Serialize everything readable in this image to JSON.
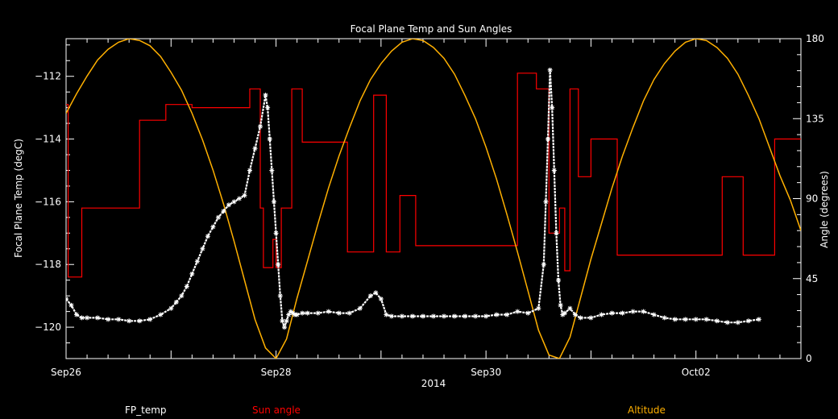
{
  "chart_data": {
    "type": "line",
    "title": "Focal Plane Temp and Sun Angles",
    "xlabel": "2014",
    "ylabel": "Focal Plane Temp (degC)",
    "y2label": "Angle (degrees)",
    "xlim": [
      0,
      7.0
    ],
    "ylim": [
      -121,
      -110.8
    ],
    "y2lim": [
      0,
      180
    ],
    "x_ticks": [
      {
        "x": 0,
        "label": "Sep26"
      },
      {
        "x": 2,
        "label": "Sep28"
      },
      {
        "x": 4,
        "label": "Sep30"
      },
      {
        "x": 6,
        "label": "Oct02"
      }
    ],
    "y_ticks": [
      {
        "y": -112,
        "label": "−112"
      },
      {
        "y": -114,
        "label": "−114"
      },
      {
        "y": -116,
        "label": "−116"
      },
      {
        "y": -118,
        "label": "−118"
      },
      {
        "y": -120,
        "label": "−120"
      }
    ],
    "y2_ticks": [
      {
        "y": 0,
        "label": "0"
      },
      {
        "y": 45,
        "label": "45"
      },
      {
        "y": 90,
        "label": "90"
      },
      {
        "y": 135,
        "label": "135"
      },
      {
        "y": 180,
        "label": "180"
      }
    ],
    "colors": {
      "fp_temp": "#ffffff",
      "sun_angle": "#ff0000",
      "altitude": "#ffb000"
    },
    "series": [
      {
        "name": "FP_temp",
        "axis": "left",
        "x": [
          0.0,
          0.05,
          0.1,
          0.15,
          0.2,
          0.3,
          0.4,
          0.5,
          0.6,
          0.7,
          0.8,
          0.9,
          1.0,
          1.05,
          1.1,
          1.15,
          1.2,
          1.25,
          1.3,
          1.35,
          1.4,
          1.45,
          1.5,
          1.55,
          1.6,
          1.65,
          1.7,
          1.75,
          1.8,
          1.85,
          1.9,
          1.92,
          1.94,
          1.96,
          1.98,
          2.0,
          2.02,
          2.04,
          2.06,
          2.08,
          2.1,
          2.12,
          2.14,
          2.16,
          2.18,
          2.2,
          2.25,
          2.3,
          2.4,
          2.5,
          2.6,
          2.7,
          2.8,
          2.9,
          2.95,
          3.0,
          3.05,
          3.1,
          3.2,
          3.3,
          3.4,
          3.5,
          3.6,
          3.7,
          3.8,
          3.9,
          4.0,
          4.1,
          4.2,
          4.3,
          4.4,
          4.5,
          4.55,
          4.57,
          4.59,
          4.61,
          4.63,
          4.65,
          4.67,
          4.69,
          4.71,
          4.73,
          4.75,
          4.8,
          4.85,
          4.9,
          5.0,
          5.1,
          5.2,
          5.3,
          5.4,
          5.5,
          5.6,
          5.7,
          5.8,
          5.9,
          6.0,
          6.1,
          6.2,
          6.3,
          6.4,
          6.5,
          6.6
        ],
        "values": [
          -119.1,
          -119.3,
          -119.6,
          -119.7,
          -119.7,
          -119.7,
          -119.75,
          -119.75,
          -119.8,
          -119.8,
          -119.75,
          -119.6,
          -119.4,
          -119.2,
          -119.0,
          -118.7,
          -118.3,
          -117.9,
          -117.5,
          -117.1,
          -116.8,
          -116.5,
          -116.3,
          -116.1,
          -116.0,
          -115.9,
          -115.8,
          -115.0,
          -114.3,
          -113.6,
          -112.6,
          -113.0,
          -114.0,
          -115.0,
          -116.0,
          -117.0,
          -118.0,
          -119.0,
          -119.8,
          -120.0,
          -119.8,
          -119.6,
          -119.5,
          -119.55,
          -119.6,
          -119.6,
          -119.55,
          -119.55,
          -119.55,
          -119.5,
          -119.55,
          -119.55,
          -119.4,
          -119.0,
          -118.9,
          -119.1,
          -119.6,
          -119.65,
          -119.65,
          -119.65,
          -119.65,
          -119.65,
          -119.65,
          -119.65,
          -119.65,
          -119.65,
          -119.65,
          -119.6,
          -119.6,
          -119.5,
          -119.55,
          -119.4,
          -118.0,
          -116.0,
          -114.0,
          -111.8,
          -113.0,
          -115.0,
          -117.0,
          -118.5,
          -119.3,
          -119.6,
          -119.55,
          -119.4,
          -119.6,
          -119.7,
          -119.7,
          -119.6,
          -119.55,
          -119.55,
          -119.5,
          -119.5,
          -119.6,
          -119.7,
          -119.75,
          -119.75,
          -119.75,
          -119.75,
          -119.8,
          -119.85,
          -119.85,
          -119.8,
          -119.75
        ]
      },
      {
        "name": "Sun angle",
        "axis": "left",
        "x": [
          0.0,
          0.02,
          0.02,
          0.15,
          0.15,
          0.7,
          0.7,
          0.95,
          0.95,
          1.2,
          1.2,
          1.75,
          1.75,
          1.85,
          1.85,
          1.88,
          1.88,
          1.97,
          1.97,
          2.0,
          2.0,
          2.05,
          2.05,
          2.15,
          2.15,
          2.25,
          2.25,
          2.28,
          2.28,
          2.68,
          2.68,
          2.93,
          2.93,
          3.05,
          3.05,
          3.18,
          3.18,
          3.33,
          3.33,
          3.5,
          3.5,
          3.78,
          3.78,
          4.3,
          4.3,
          4.48,
          4.48,
          4.6,
          4.6,
          4.7,
          4.7,
          4.75,
          4.75,
          4.8,
          4.8,
          4.88,
          4.88,
          5.0,
          5.0,
          5.12,
          5.12,
          5.25,
          5.25,
          5.7,
          5.7,
          6.25,
          6.25,
          6.45,
          6.45,
          6.75,
          6.75,
          7.0
        ],
        "values": [
          -112.9,
          -112.9,
          -118.4,
          -118.4,
          -116.2,
          -116.2,
          -113.4,
          -113.4,
          -112.9,
          -112.9,
          -113.0,
          -113.0,
          -112.4,
          -112.4,
          -116.2,
          -116.2,
          -118.1,
          -118.1,
          -117.2,
          -117.2,
          -118.1,
          -118.1,
          -116.2,
          -116.2,
          -112.4,
          -112.4,
          -114.1,
          -114.1,
          -114.1,
          -114.1,
          -117.6,
          -117.6,
          -112.6,
          -112.6,
          -117.6,
          -117.6,
          -115.8,
          -115.8,
          -117.4,
          -117.4,
          -117.4,
          -117.4,
          -117.4,
          -117.4,
          -111.9,
          -111.9,
          -112.4,
          -112.4,
          -117.0,
          -117.0,
          -116.2,
          -116.2,
          -118.2,
          -118.2,
          -112.4,
          -112.4,
          -115.2,
          -115.2,
          -114.0,
          -114.0,
          -114.0,
          -114.0,
          -117.7,
          -117.7,
          -117.7,
          -117.7,
          -115.2,
          -115.2,
          -117.7,
          -117.7,
          -114.0,
          -114.0
        ]
      },
      {
        "name": "Altitude",
        "axis": "right",
        "x": [
          0.0,
          0.1,
          0.2,
          0.3,
          0.4,
          0.5,
          0.6,
          0.7,
          0.8,
          0.9,
          1.0,
          1.1,
          1.2,
          1.3,
          1.4,
          1.5,
          1.6,
          1.7,
          1.8,
          1.9,
          2.0,
          2.1,
          2.2,
          2.3,
          2.4,
          2.5,
          2.6,
          2.7,
          2.8,
          2.9,
          3.0,
          3.1,
          3.2,
          3.3,
          3.4,
          3.5,
          3.6,
          3.7,
          3.8,
          3.9,
          4.0,
          4.1,
          4.2,
          4.3,
          4.4,
          4.5,
          4.6,
          4.7,
          4.8,
          4.9,
          5.0,
          5.1,
          5.2,
          5.3,
          5.4,
          5.5,
          5.6,
          5.7,
          5.8,
          5.9,
          6.0,
          6.1,
          6.2,
          6.3,
          6.4,
          6.5,
          6.6,
          6.7,
          6.8,
          6.9,
          7.0
        ],
        "values": [
          138,
          149,
          159,
          168,
          174,
          178,
          180,
          179,
          176,
          170,
          161,
          151,
          138,
          123,
          106,
          87,
          66,
          44,
          22,
          6,
          0,
          11,
          34,
          55,
          76,
          96,
          114,
          130,
          145,
          157,
          166,
          173,
          178,
          180,
          179,
          175,
          169,
          160,
          148,
          135,
          119,
          101,
          81,
          60,
          38,
          16,
          2,
          0,
          12,
          34,
          56,
          76,
          96,
          114,
          130,
          145,
          157,
          166,
          173,
          178,
          180,
          179,
          175,
          169,
          160,
          148,
          135,
          119,
          103,
          89,
          72
        ]
      }
    ]
  },
  "legend": {
    "fp_temp": "FP_temp",
    "sun_angle": "Sun angle",
    "altitude": "Altitude"
  }
}
